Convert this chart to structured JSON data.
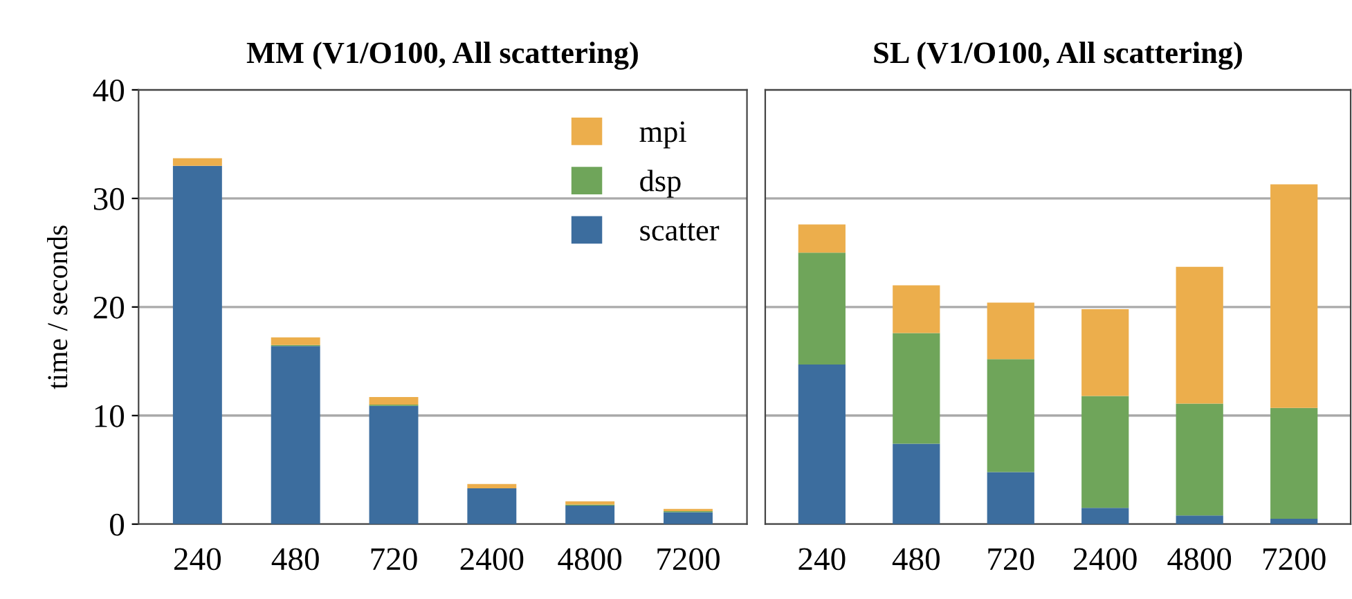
{
  "chart_data": [
    {
      "type": "bar",
      "title": "MM (V1/O100, All scattering)",
      "ylabel": "time / seconds",
      "categories": [
        "240",
        "480",
        "720",
        "2400",
        "4800",
        "7200"
      ],
      "stacked": true,
      "ylim": [
        0,
        40
      ],
      "yticks": [
        0,
        10,
        20,
        30,
        40
      ],
      "grid": "y",
      "legend": "top right",
      "series": [
        {
          "name": "scatter",
          "color": "#3c6d9e",
          "values": [
            33.0,
            16.4,
            10.9,
            3.3,
            1.7,
            1.1
          ]
        },
        {
          "name": "dsp",
          "color": "#6fa55a",
          "values": [
            0.0,
            0.1,
            0.1,
            0.0,
            0.1,
            0.1
          ]
        },
        {
          "name": "mpi",
          "color": "#ecae4c",
          "values": [
            0.7,
            0.7,
            0.7,
            0.4,
            0.3,
            0.2
          ]
        }
      ]
    },
    {
      "type": "bar",
      "title": "SL (V1/O100, All scattering)",
      "categories": [
        "240",
        "480",
        "720",
        "2400",
        "4800",
        "7200"
      ],
      "stacked": true,
      "ylim": [
        0,
        40
      ],
      "yticks": [
        0,
        10,
        20,
        30,
        40
      ],
      "grid": "y",
      "tick_labels": "x",
      "series": [
        {
          "color": "#3c6d9e",
          "values": [
            14.7,
            7.4,
            4.8,
            1.5,
            0.8,
            0.5
          ]
        },
        {
          "color": "#6fa55a",
          "values": [
            10.3,
            10.2,
            10.4,
            10.3,
            10.3,
            10.2
          ]
        },
        {
          "color": "#ecae4c",
          "values": [
            2.6,
            4.4,
            5.2,
            8.0,
            12.6,
            20.6
          ]
        }
      ]
    }
  ]
}
